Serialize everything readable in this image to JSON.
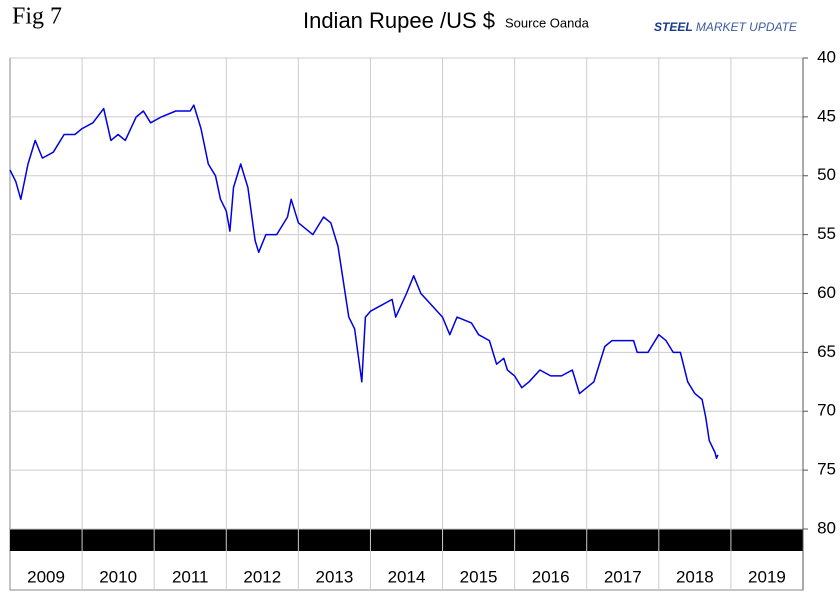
{
  "chart_data": {
    "type": "line",
    "fig_label": "Fig 7",
    "title": "Indian Rupee /US $",
    "subtitle": "Source Oanda",
    "logo": {
      "first": "STEEL",
      "second": "MARKET UPDATE"
    },
    "categories": [
      "2009",
      "2010",
      "2011",
      "2012",
      "2013",
      "2014",
      "2015",
      "2016",
      "2017",
      "2018",
      "2019"
    ],
    "xlim": [
      2009,
      2020
    ],
    "ylim": [
      40,
      80
    ],
    "y_inverted": true,
    "yticks": [
      40,
      45,
      50,
      55,
      60,
      65,
      70,
      75,
      80
    ],
    "grid": true,
    "color": "#0000e0",
    "x": [
      2009.0,
      2009.08,
      2009.15,
      2009.25,
      2009.35,
      2009.45,
      2009.6,
      2009.75,
      2009.9,
      2010.0,
      2010.15,
      2010.3,
      2010.4,
      2010.5,
      2010.6,
      2010.75,
      2010.85,
      2010.95,
      2011.1,
      2011.3,
      2011.5,
      2011.55,
      2011.65,
      2011.75,
      2011.85,
      2011.92,
      2012.0,
      2012.05,
      2012.1,
      2012.2,
      2012.3,
      2012.4,
      2012.45,
      2012.55,
      2012.7,
      2012.85,
      2012.9,
      2013.0,
      2013.2,
      2013.35,
      2013.45,
      2013.55,
      2013.7,
      2013.78,
      2013.88,
      2013.93,
      2014.0,
      2014.15,
      2014.3,
      2014.35,
      2014.5,
      2014.6,
      2014.7,
      2014.85,
      2015.0,
      2015.1,
      2015.2,
      2015.4,
      2015.5,
      2015.65,
      2015.75,
      2015.85,
      2015.9,
      2016.0,
      2016.1,
      2016.2,
      2016.35,
      2016.5,
      2016.65,
      2016.8,
      2016.9,
      2017.0,
      2017.1,
      2017.25,
      2017.35,
      2017.5,
      2017.65,
      2017.7,
      2017.85,
      2018.0,
      2018.1,
      2018.2,
      2018.3,
      2018.4,
      2018.5,
      2018.6,
      2018.65,
      2018.7,
      2018.78,
      2018.8,
      2018.82
    ],
    "values": [
      49.5,
      50.5,
      52,
      49,
      47,
      48.5,
      48,
      46.5,
      46.5,
      46,
      45.5,
      44.3,
      47,
      46.5,
      47,
      45,
      44.5,
      45.5,
      45,
      44.5,
      44.5,
      44,
      46,
      49,
      50,
      52,
      53,
      54.7,
      51,
      49,
      51,
      55.5,
      56.5,
      55,
      55,
      53.5,
      52,
      54,
      55,
      53.5,
      54,
      56,
      62,
      63,
      67.5,
      62,
      61.5,
      61,
      60.5,
      62,
      60,
      58.5,
      60,
      61,
      62,
      63.5,
      62,
      62.5,
      63.5,
      64,
      66,
      65.5,
      66.5,
      67,
      68,
      67.5,
      66.5,
      67,
      67,
      66.5,
      68.5,
      68,
      67.5,
      64.5,
      64,
      64,
      64,
      65,
      65,
      63.5,
      64,
      65,
      65,
      67.5,
      68.5,
      69,
      70.5,
      72.5,
      73.5,
      74,
      73.7
    ]
  }
}
